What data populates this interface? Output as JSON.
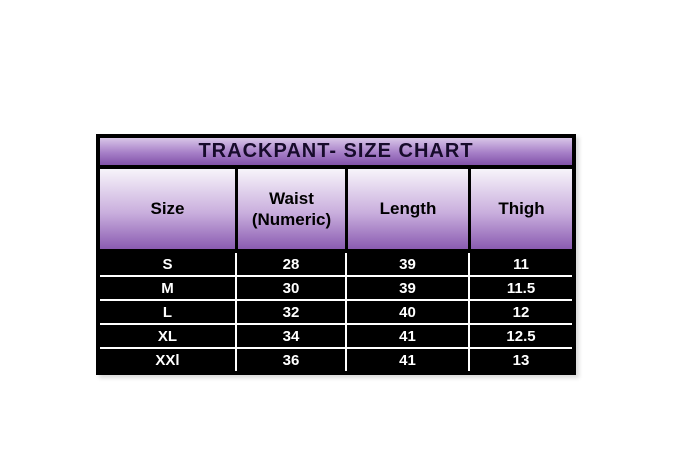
{
  "chart_data": {
    "type": "table",
    "title": "TRACKPANT- SIZE CHART",
    "columns": [
      "Size",
      "Waist (Numeric)",
      "Length",
      "Thigh"
    ],
    "rows": [
      [
        "S",
        "28",
        "39",
        "11"
      ],
      [
        "M",
        "30",
        "39",
        "11.5"
      ],
      [
        "L",
        "32",
        "40",
        "12"
      ],
      [
        "XL",
        "34",
        "41",
        "12.5"
      ],
      [
        "XXl",
        "36",
        "41",
        "13"
      ]
    ]
  },
  "colors": {
    "page_background": "#ffffff",
    "border": "#000000",
    "title_gradient_top": "#d8c6e8",
    "title_gradient_bottom": "#8152a9",
    "header_gradient_top": "#f7f4fa",
    "header_gradient_bottom": "#8a5bb1",
    "body_background": "#000000",
    "body_text": "#ffffff",
    "title_text": "#170b2b",
    "header_text": "#000000"
  }
}
